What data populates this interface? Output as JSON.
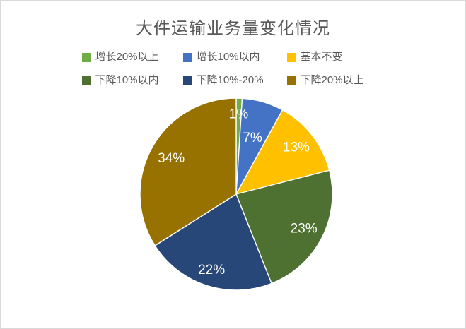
{
  "title": "大件运输业务量变化情况",
  "colors": {
    "title_text": "#595959",
    "legend_text": "#595959",
    "frame_border": "#D9D9D9",
    "background": "#FFFFFF",
    "slice_label_text": "#FFFFFF"
  },
  "chart_data": {
    "type": "pie",
    "title": "大件运输业务量变化情况",
    "categories": [
      "增长20%以上",
      "增长10%以内",
      "基本不变",
      "下降10%以内",
      "下降10%-20%",
      "下降20%以上"
    ],
    "values": [
      1,
      7,
      13,
      23,
      22,
      34
    ],
    "labels": [
      "1%",
      "7%",
      "13%",
      "23%",
      "22%",
      "34%"
    ],
    "colors": [
      "#70AD47",
      "#4472C4",
      "#FFC000",
      "#4E7132",
      "#264778",
      "#977200"
    ],
    "start_angle_deg": 0,
    "direction": "clockwise",
    "legend_position": "top",
    "slice_border_color": "#FFFFFF",
    "label_color": "#FFFFFF",
    "label_radius": [
      0.83,
      0.61,
      0.79,
      0.79,
      0.83,
      0.77
    ]
  }
}
